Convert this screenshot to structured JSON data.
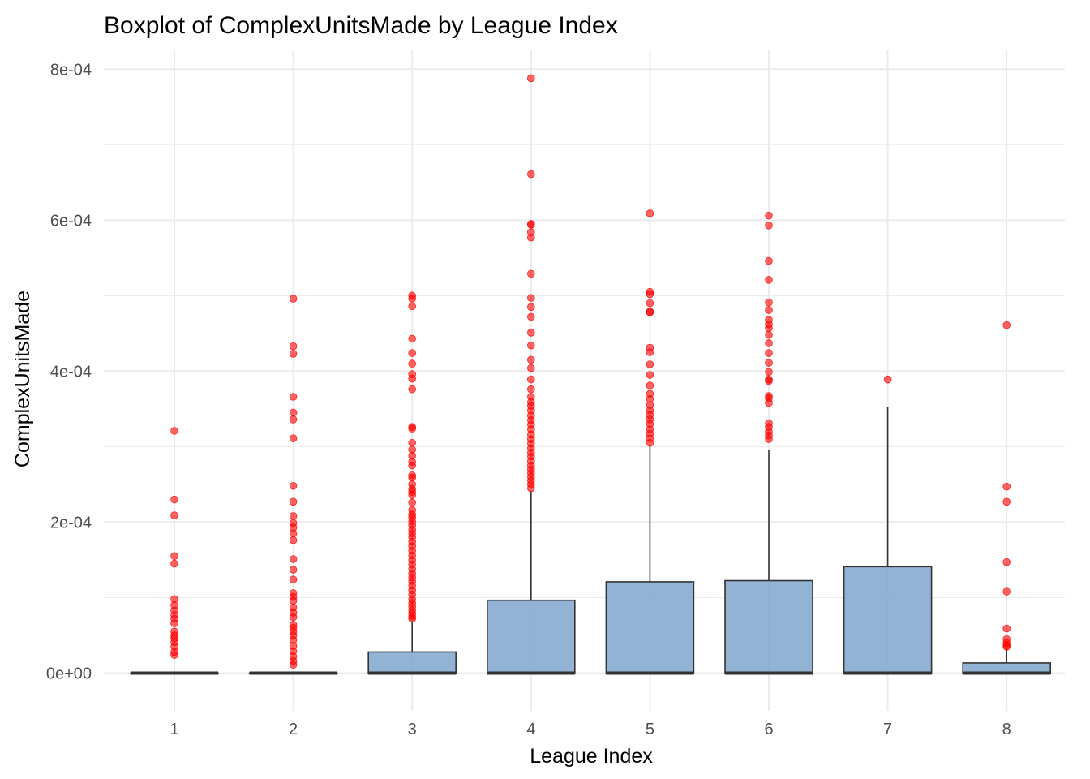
{
  "chart_data": {
    "type": "boxplot",
    "title": "Boxplot of ComplexUnitsMade by League Index",
    "xlabel": "League Index",
    "ylabel": "ComplexUnitsMade",
    "categories": [
      "1",
      "2",
      "3",
      "4",
      "5",
      "6",
      "7",
      "8"
    ],
    "ylim": [
      -5e-05,
      0.000825
    ],
    "yticks": [
      0,
      0.0002,
      0.0004,
      0.0006,
      0.0008
    ],
    "ytick_labels": [
      "0e+00",
      "2e-04",
      "4e-04",
      "6e-04",
      "8e-04"
    ],
    "grid": true,
    "legend": "none",
    "colors": {
      "box_fill": "#7fa6cb",
      "box_stroke": "#333333",
      "outlier": "#ff0000",
      "grid": "#ebebeb"
    },
    "boxes": [
      {
        "category": "1",
        "min": 0,
        "q1": 0,
        "median": 0,
        "q3": 0,
        "max": 0
      },
      {
        "category": "2",
        "min": 0,
        "q1": 0,
        "median": 0,
        "q3": 0,
        "max": 0
      },
      {
        "category": "3",
        "min": 0,
        "q1": 0,
        "median": 0,
        "q3": 2.8e-05,
        "max": 6.9e-05
      },
      {
        "category": "4",
        "min": 0,
        "q1": 0,
        "median": 0,
        "q3": 9.65e-05,
        "max": 0.000241
      },
      {
        "category": "5",
        "min": 0,
        "q1": 0,
        "median": 0,
        "q3": 0.000121,
        "max": 0.000301
      },
      {
        "category": "6",
        "min": 0,
        "q1": 0,
        "median": 0,
        "q3": 0.0001225,
        "max": 0.000296
      },
      {
        "category": "7",
        "min": 0,
        "q1": 0,
        "median": 0,
        "q3": 0.000141,
        "max": 0.000352
      },
      {
        "category": "8",
        "min": 0,
        "q1": 0,
        "median": 0,
        "q3": 1.35e-05,
        "max": 3.35e-05
      }
    ],
    "outliers": [
      [
        0.000321,
        0.00023,
        0.000209,
        0.000155,
        0.000145,
        9.8e-05,
        9e-05,
        8.3e-05,
        7.7e-05,
        7.2e-05,
        6.6e-05,
        5.5e-05,
        5e-05,
        4.6e-05,
        4.1e-05,
        3.5e-05,
        2.8e-05,
        2.4e-05
      ],
      [
        0.000496,
        0.000433,
        0.000423,
        0.000366,
        0.000345,
        0.000336,
        0.000311,
        0.000248,
        0.000227,
        0.000208,
        0.000199,
        0.000193,
        0.000185,
        0.000176,
        0.000151,
        0.000137,
        0.000124,
        0.000106,
        0.000101,
        9.6e-05,
        8.7e-05,
        8e-05,
        7.4e-05,
        6.4e-05,
        6e-05,
        5.5e-05,
        5e-05,
        4.4e-05,
        3.6e-05,
        2.9e-05,
        2.2e-05,
        1.6e-05,
        1.1e-05
      ],
      [
        0.0005,
        0.000496,
        0.000486,
        0.000443,
        0.000424,
        0.00041,
        0.000396,
        0.00039,
        0.000376,
        0.000326,
        0.000324,
        0.000305,
        0.000296,
        0.000288,
        0.00028,
        0.000275,
        0.000262,
        0.000259,
        0.00025,
        0.000244,
        0.00024,
        0.000236,
        0.000226,
        0.000216,
        0.00021,
        0.000206,
        0.000201,
        0.000196,
        0.00019,
        0.000185,
        0.00018,
        0.000174,
        0.000168,
        0.000162,
        0.000156,
        0.00015,
        0.000144,
        0.000138,
        0.000132,
        0.000127,
        0.000122,
        0.000116,
        0.00011,
        0.000104,
        9.8e-05,
        9.3e-05,
        8.8e-05,
        8.3e-05,
        7.9e-05,
        7.5e-05,
        7.2e-05
      ],
      [
        0.000788,
        0.000661,
        0.000595,
        0.000594,
        0.000584,
        0.000577,
        0.000529,
        0.000497,
        0.000485,
        0.000472,
        0.000451,
        0.000434,
        0.000415,
        0.000404,
        0.000389,
        0.000376,
        0.000366,
        0.000359,
        0.000354,
        0.000348,
        0.000341,
        0.000335,
        0.000329,
        0.000323,
        0.000316,
        0.00031,
        0.000304,
        0.000298,
        0.000292,
        0.000287,
        0.000281,
        0.000275,
        0.00027,
        0.000265,
        0.00026,
        0.000255,
        0.00025,
        0.000245
      ],
      [
        0.000609,
        0.000505,
        0.000502,
        0.00049,
        0.000479,
        0.000478,
        0.000431,
        0.000425,
        0.000409,
        0.000395,
        0.000381,
        0.00037,
        0.000363,
        0.000355,
        0.000348,
        0.000342,
        0.000336,
        0.00033,
        0.000323,
        0.000317,
        0.000311,
        0.000305
      ],
      [
        0.000606,
        0.000593,
        0.000546,
        0.000521,
        0.000491,
        0.000481,
        0.000468,
        0.000462,
        0.000457,
        0.000448,
        0.000437,
        0.000424,
        0.000411,
        0.000399,
        0.000389,
        0.000387,
        0.000367,
        0.000364,
        0.000358,
        0.000331,
        0.000326,
        0.00032,
        0.000315,
        0.00031
      ],
      [
        0.000389
      ],
      [
        0.000461,
        0.000247,
        0.000227,
        0.000147,
        0.000108,
        5.9e-05,
        4.5e-05,
        4e-05,
        3.7e-05,
        3.5e-05
      ]
    ]
  }
}
